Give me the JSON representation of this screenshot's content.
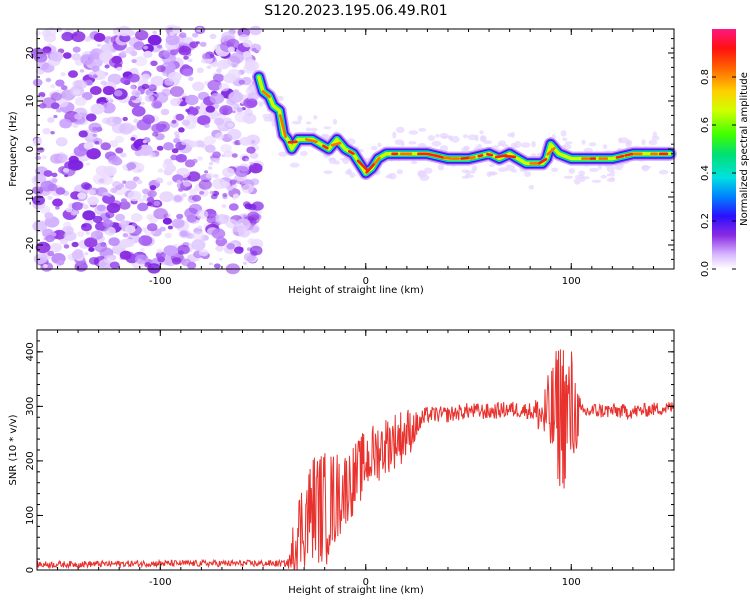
{
  "title": "S120.2023.195.06.49.R01",
  "chart_data": [
    {
      "type": "heatmap",
      "xlabel": "Height of straight line (km)",
      "ylabel": "Frequency (Hz)",
      "xlim": [
        -160,
        150
      ],
      "ylim": [
        -25,
        25
      ],
      "x_ticks": [
        -100,
        0,
        100
      ],
      "y_ticks": [
        -20,
        -10,
        0,
        10,
        20
      ],
      "noise_region_x": [
        -160,
        -52
      ],
      "ridge": {
        "x": [
          -52,
          -50,
          -47,
          -45,
          -42,
          -40,
          -38,
          -36,
          -33,
          -30,
          -26,
          -22,
          -18,
          -14,
          -10,
          -6,
          -3,
          0,
          3,
          6,
          10,
          15,
          20,
          30,
          40,
          50,
          60,
          65,
          70,
          74,
          78,
          82,
          86,
          88,
          90,
          94,
          100,
          110,
          120,
          130,
          140,
          148
        ],
        "y": [
          15,
          12,
          11,
          9,
          8,
          3,
          2,
          0,
          2,
          2,
          2,
          1,
          0,
          2,
          0,
          -1,
          -3,
          -5,
          -4,
          -2,
          -1,
          -1,
          -1,
          -1,
          -2,
          -2,
          -1,
          -2,
          -1,
          -2,
          -3,
          -3,
          -3,
          -2,
          1,
          -1,
          -2,
          -2,
          -2,
          -1,
          -1,
          -1
        ]
      },
      "colorbar": {
        "label": "Normalized spectral amplitude",
        "ticks": [
          0.0,
          0.2,
          0.4,
          0.6,
          0.8
        ],
        "range": [
          0,
          1
        ]
      }
    },
    {
      "type": "line",
      "xlabel": "Height of straight line (km)",
      "ylabel": "SNR (10 * v/v)",
      "xlim": [
        -160,
        150
      ],
      "ylim": [
        0,
        440
      ],
      "x_ticks": [
        -100,
        0,
        100
      ],
      "y_ticks": [
        0,
        100,
        200,
        300,
        400
      ],
      "color": "#e8322e",
      "envelope": {
        "x": [
          -160,
          -100,
          -50,
          -36,
          -34,
          -30,
          -25,
          -20,
          -15,
          -10,
          -5,
          0,
          5,
          10,
          15,
          20,
          25,
          30,
          40,
          50,
          60,
          70,
          80,
          85,
          90,
          95,
          100,
          105,
          110,
          120,
          130,
          140,
          150
        ],
        "y": [
          10,
          12,
          12,
          12,
          60,
          90,
          120,
          110,
          130,
          150,
          170,
          200,
          215,
          230,
          240,
          250,
          265,
          285,
          285,
          292,
          290,
          295,
          292,
          285,
          280,
          290,
          285,
          288,
          292,
          292,
          290,
          295,
          298
        ]
      },
      "noise_amp": {
        "x": [
          -160,
          -38,
          -36,
          -30,
          -20,
          -10,
          0,
          10,
          20,
          25,
          30,
          80,
          85,
          90,
          95,
          100,
          105,
          150
        ],
        "y": [
          6,
          6,
          60,
          90,
          110,
          70,
          60,
          55,
          50,
          25,
          15,
          15,
          40,
          90,
          150,
          130,
          15,
          12
        ]
      }
    }
  ]
}
